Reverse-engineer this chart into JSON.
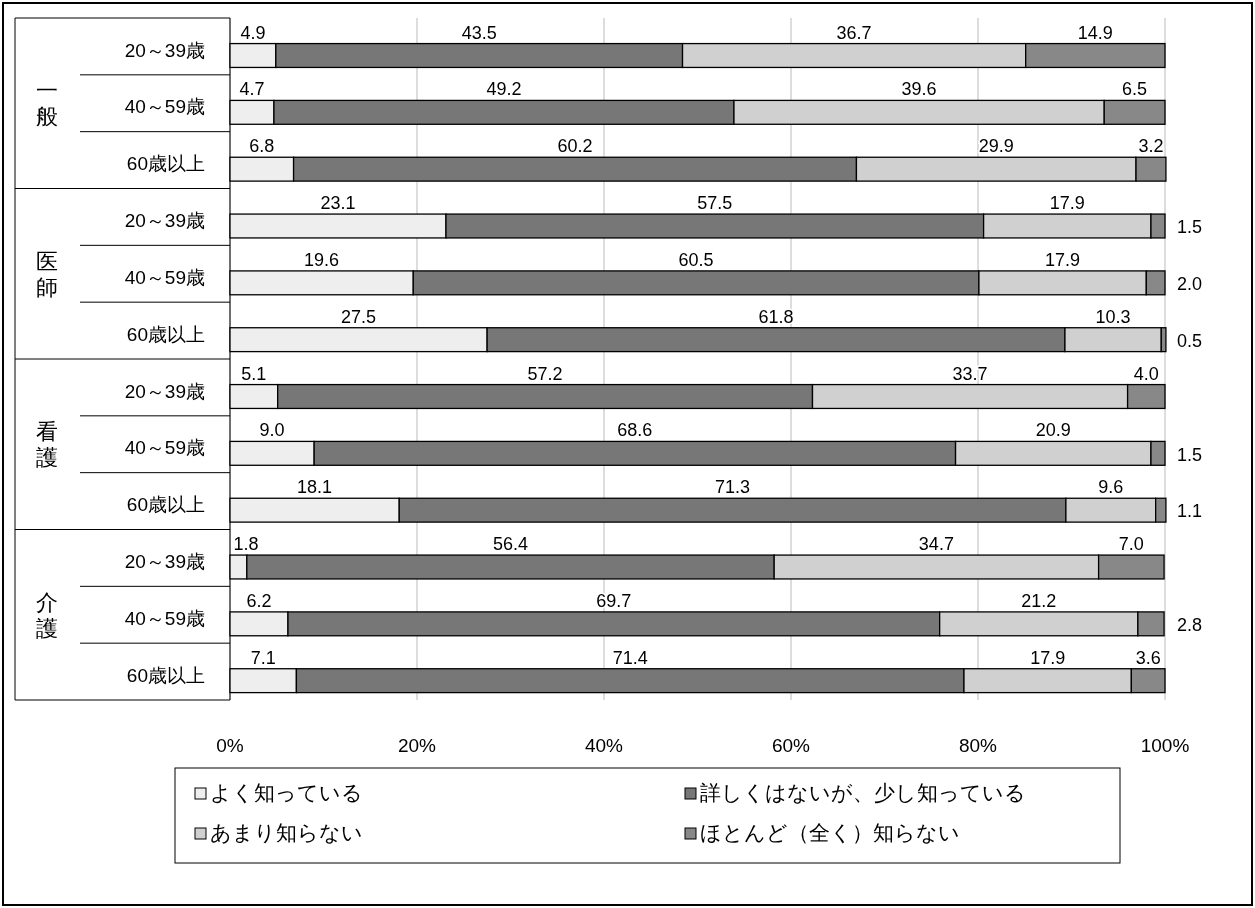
{
  "chart_data": {
    "type": "bar",
    "orientation": "horizontal",
    "stacked": true,
    "categories": [
      "20～39歳",
      "40～59歳",
      "60歳以上",
      "20～39歳",
      "40～59歳",
      "60歳以上",
      "20～39歳",
      "40～59歳",
      "60歳以上",
      "20～39歳",
      "40～59歳",
      "60歳以上"
    ],
    "annotations": [
      "一般",
      "医師",
      "看護",
      "介護"
    ],
    "series": [
      {
        "name": "よく知っている",
        "color": "#eeeeee",
        "values": [
          4.9,
          4.7,
          6.8,
          23.1,
          19.6,
          27.5,
          5.1,
          9.0,
          18.1,
          1.8,
          6.2,
          7.1
        ],
        "value_labels": [
          "4.9",
          "4.7",
          "6.8",
          "23.1",
          "19.6",
          "27.5",
          "5.1",
          "9.0",
          "18.1",
          "1.8",
          "6.2",
          "7.1"
        ]
      },
      {
        "name": "詳しくはないが、少し知っている",
        "color": "#777777",
        "values": [
          43.5,
          49.2,
          60.2,
          57.5,
          60.5,
          61.8,
          57.2,
          68.6,
          71.3,
          56.4,
          69.7,
          71.4
        ],
        "value_labels": [
          "43.5",
          "49.2",
          "60.2",
          "57.5",
          "60.5",
          "61.8",
          "57.2",
          "68.6",
          "71.3",
          "56.4",
          "69.7",
          "71.4"
        ]
      },
      {
        "name": "あまり知らない",
        "color": "#d0d0d0",
        "values": [
          36.7,
          39.6,
          29.9,
          17.9,
          17.9,
          10.3,
          33.7,
          20.9,
          9.6,
          34.7,
          21.2,
          17.9
        ],
        "value_labels": [
          "36.7",
          "39.6",
          "29.9",
          "17.9",
          "17.9",
          "10.3",
          "33.7",
          "20.9",
          "9.6",
          "34.7",
          "21.2",
          "17.9"
        ]
      },
      {
        "name": "ほとんど（全く）知らない",
        "color": "#888888",
        "values": [
          14.9,
          6.5,
          3.2,
          1.5,
          2.0,
          0.5,
          4.0,
          1.5,
          1.1,
          7.0,
          2.8,
          3.6
        ],
        "value_labels": [
          "14.9",
          "6.5",
          "3.2",
          "1.5",
          "2.0",
          "0.5",
          "4.0",
          "1.5",
          "1.1",
          "7.0",
          "2.8",
          "3.6"
        ]
      }
    ],
    "xlim": [
      0,
      100
    ],
    "xticks": [
      {
        "value": 0,
        "label": "0%"
      },
      {
        "value": 20,
        "label": "20%"
      },
      {
        "value": 40,
        "label": "40%"
      },
      {
        "value": 60,
        "label": "60%"
      },
      {
        "value": 80,
        "label": "80%"
      },
      {
        "value": 100,
        "label": "100%"
      }
    ],
    "grid": "x",
    "legend": "bottom"
  }
}
